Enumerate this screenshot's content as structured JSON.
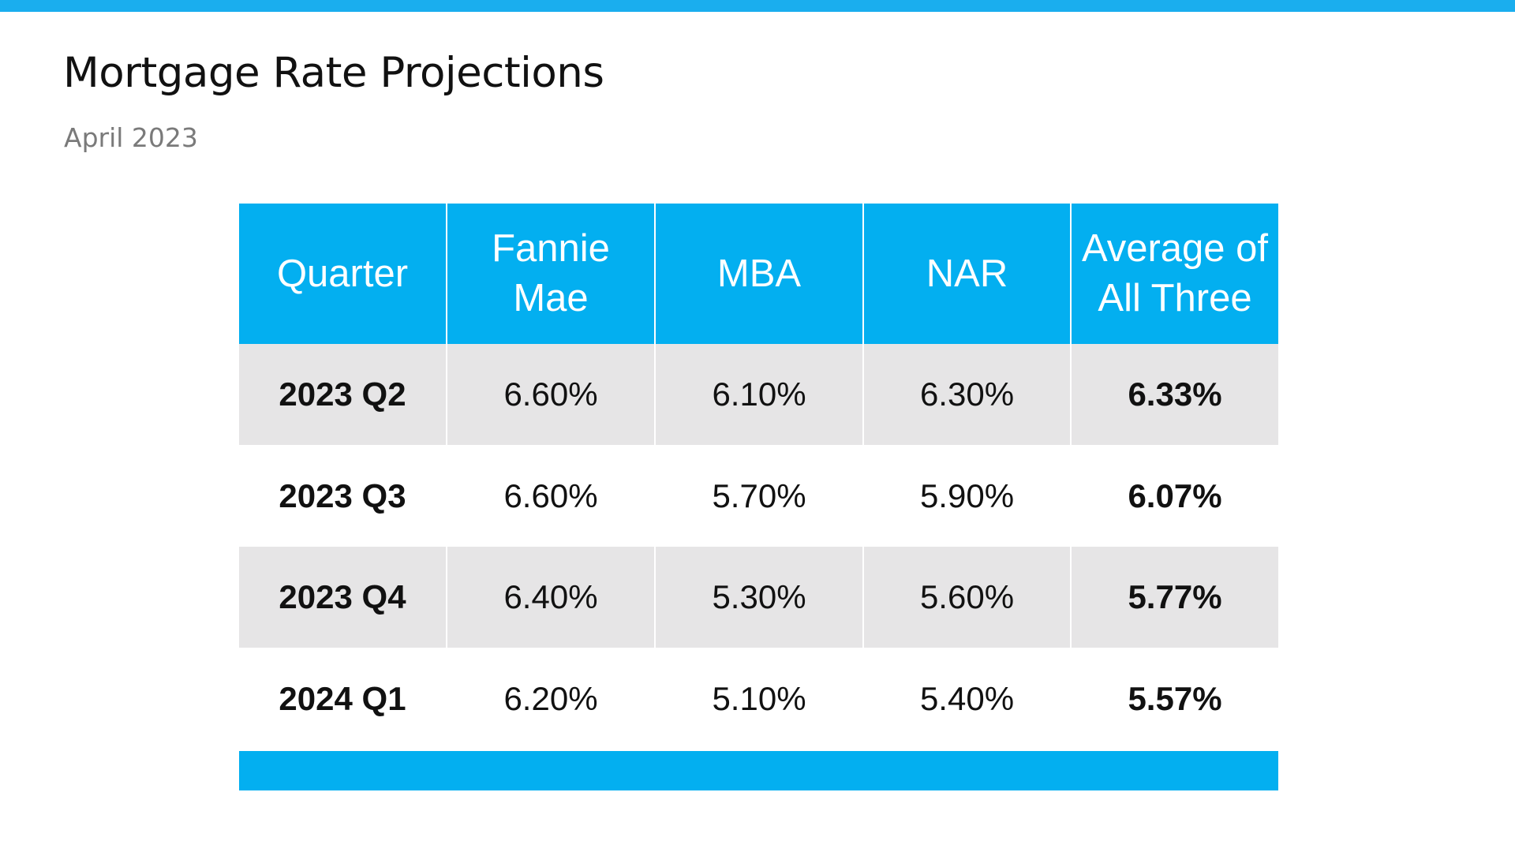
{
  "slide": {
    "title": "Mortgage Rate Projections",
    "subtitle": "April 2023",
    "accent_color": "#03aff0"
  },
  "table": {
    "headers": {
      "quarter": "Quarter",
      "fannie_mae": "Fannie Mae",
      "mba": "MBA",
      "nar": "NAR",
      "average": "Average of All Three"
    },
    "rows": [
      {
        "quarter": "2023 Q2",
        "fannie_mae": "6.60%",
        "mba": "6.10%",
        "nar": "6.30%",
        "average": "6.33%"
      },
      {
        "quarter": "2023 Q3",
        "fannie_mae": "6.60%",
        "mba": "5.70%",
        "nar": "5.90%",
        "average": "6.07%"
      },
      {
        "quarter": "2023 Q4",
        "fannie_mae": "6.40%",
        "mba": "5.30%",
        "nar": "5.60%",
        "average": "5.77%"
      },
      {
        "quarter": "2024 Q1",
        "fannie_mae": "6.20%",
        "mba": "5.10%",
        "nar": "5.40%",
        "average": "5.57%"
      }
    ]
  }
}
